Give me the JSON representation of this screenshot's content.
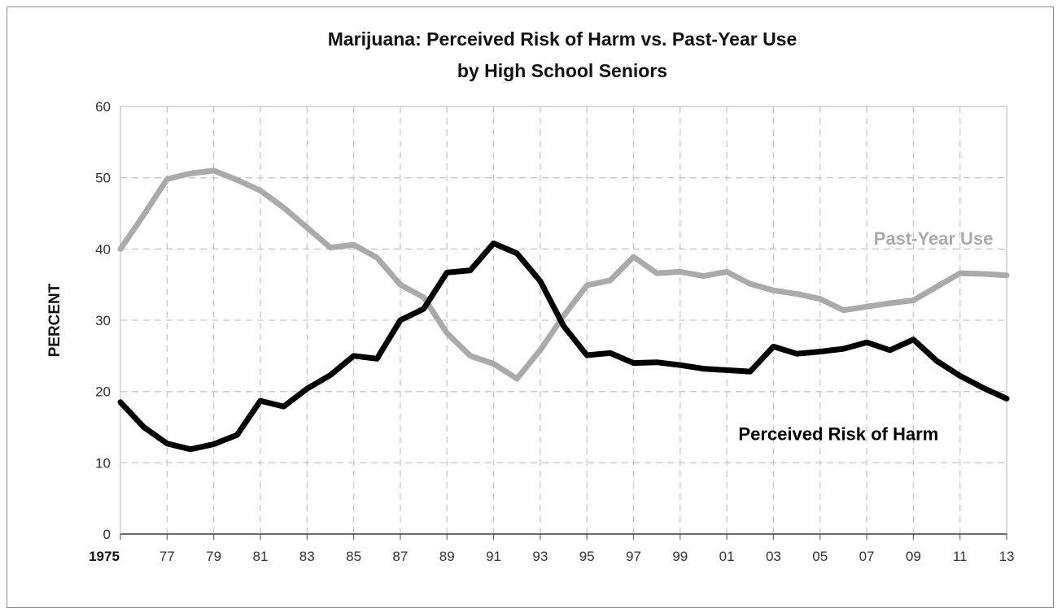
{
  "chart_data": {
    "type": "line",
    "title": "Marijuana: Perceived Risk of Harm vs. Past-Year Use",
    "subtitle": "by High School Seniors",
    "xlabel": "",
    "ylabel": "PERCENT",
    "ylim": [
      0,
      60
    ],
    "xlim": [
      1975,
      2013
    ],
    "y_ticks": [
      0,
      10,
      20,
      30,
      40,
      50,
      60
    ],
    "x_ticks": [
      1975,
      1977,
      1979,
      1981,
      1983,
      1985,
      1987,
      1989,
      1991,
      1993,
      1995,
      1997,
      1999,
      2001,
      2003,
      2005,
      2007,
      2009,
      2011,
      2013
    ],
    "x_tick_labels": [
      "1975",
      "77",
      "79",
      "81",
      "83",
      "85",
      "87",
      "89",
      "91",
      "93",
      "95",
      "97",
      "99",
      "01",
      "03",
      "05",
      "07",
      "09",
      "11",
      "13"
    ],
    "grid": true,
    "series": [
      {
        "name": "Past-Year Use",
        "color": "#aaaaaa",
        "x": [
          1975,
          1976,
          1977,
          1978,
          1979,
          1980,
          1981,
          1982,
          1983,
          1984,
          1985,
          1986,
          1987,
          1988,
          1989,
          1990,
          1991,
          1992,
          1993,
          1994,
          1995,
          1996,
          1997,
          1998,
          1999,
          2000,
          2001,
          2002,
          2003,
          2004,
          2005,
          2006,
          2007,
          2008,
          2009,
          2010,
          2011,
          2012,
          2013
        ],
        "values": [
          40.0,
          44.8,
          49.8,
          50.6,
          51.0,
          49.7,
          48.2,
          45.8,
          43.0,
          40.2,
          40.6,
          38.8,
          35.0,
          33.2,
          28.2,
          25.0,
          23.9,
          21.8,
          25.8,
          30.6,
          34.9,
          35.6,
          38.9,
          36.6,
          36.8,
          36.2,
          36.8,
          35.1,
          34.2,
          33.7,
          33.0,
          31.4,
          31.9,
          32.4,
          32.8,
          34.7,
          36.6,
          36.5,
          36.3
        ]
      },
      {
        "name": "Perceived Risk of Harm",
        "color": "#000000",
        "x": [
          1975,
          1976,
          1977,
          1978,
          1979,
          1980,
          1981,
          1982,
          1983,
          1984,
          1985,
          1986,
          1987,
          1988,
          1989,
          1990,
          1991,
          1992,
          1993,
          1994,
          1995,
          1996,
          1997,
          1998,
          1999,
          2000,
          2001,
          2002,
          2003,
          2004,
          2005,
          2006,
          2007,
          2008,
          2009,
          2010,
          2011,
          2012,
          2013
        ],
        "values": [
          18.5,
          15.0,
          12.7,
          11.9,
          12.6,
          13.9,
          18.7,
          17.9,
          20.4,
          22.3,
          25.0,
          24.6,
          30.0,
          31.6,
          36.7,
          37.0,
          40.8,
          39.4,
          35.5,
          29.2,
          25.1,
          25.4,
          24.0,
          24.1,
          23.7,
          23.2,
          23.0,
          22.8,
          26.3,
          25.3,
          25.6,
          26.0,
          26.9,
          25.8,
          27.3,
          24.3,
          22.2,
          20.5,
          19.0
        ]
      }
    ],
    "annotations": [
      {
        "text": "Past-Year Use",
        "x": 2007.3,
        "y": 40.6,
        "color": "#aaaaaa"
      },
      {
        "text": "Perceived Risk of Harm",
        "x": 2001.5,
        "y": 13.2,
        "color": "#000000"
      }
    ]
  }
}
